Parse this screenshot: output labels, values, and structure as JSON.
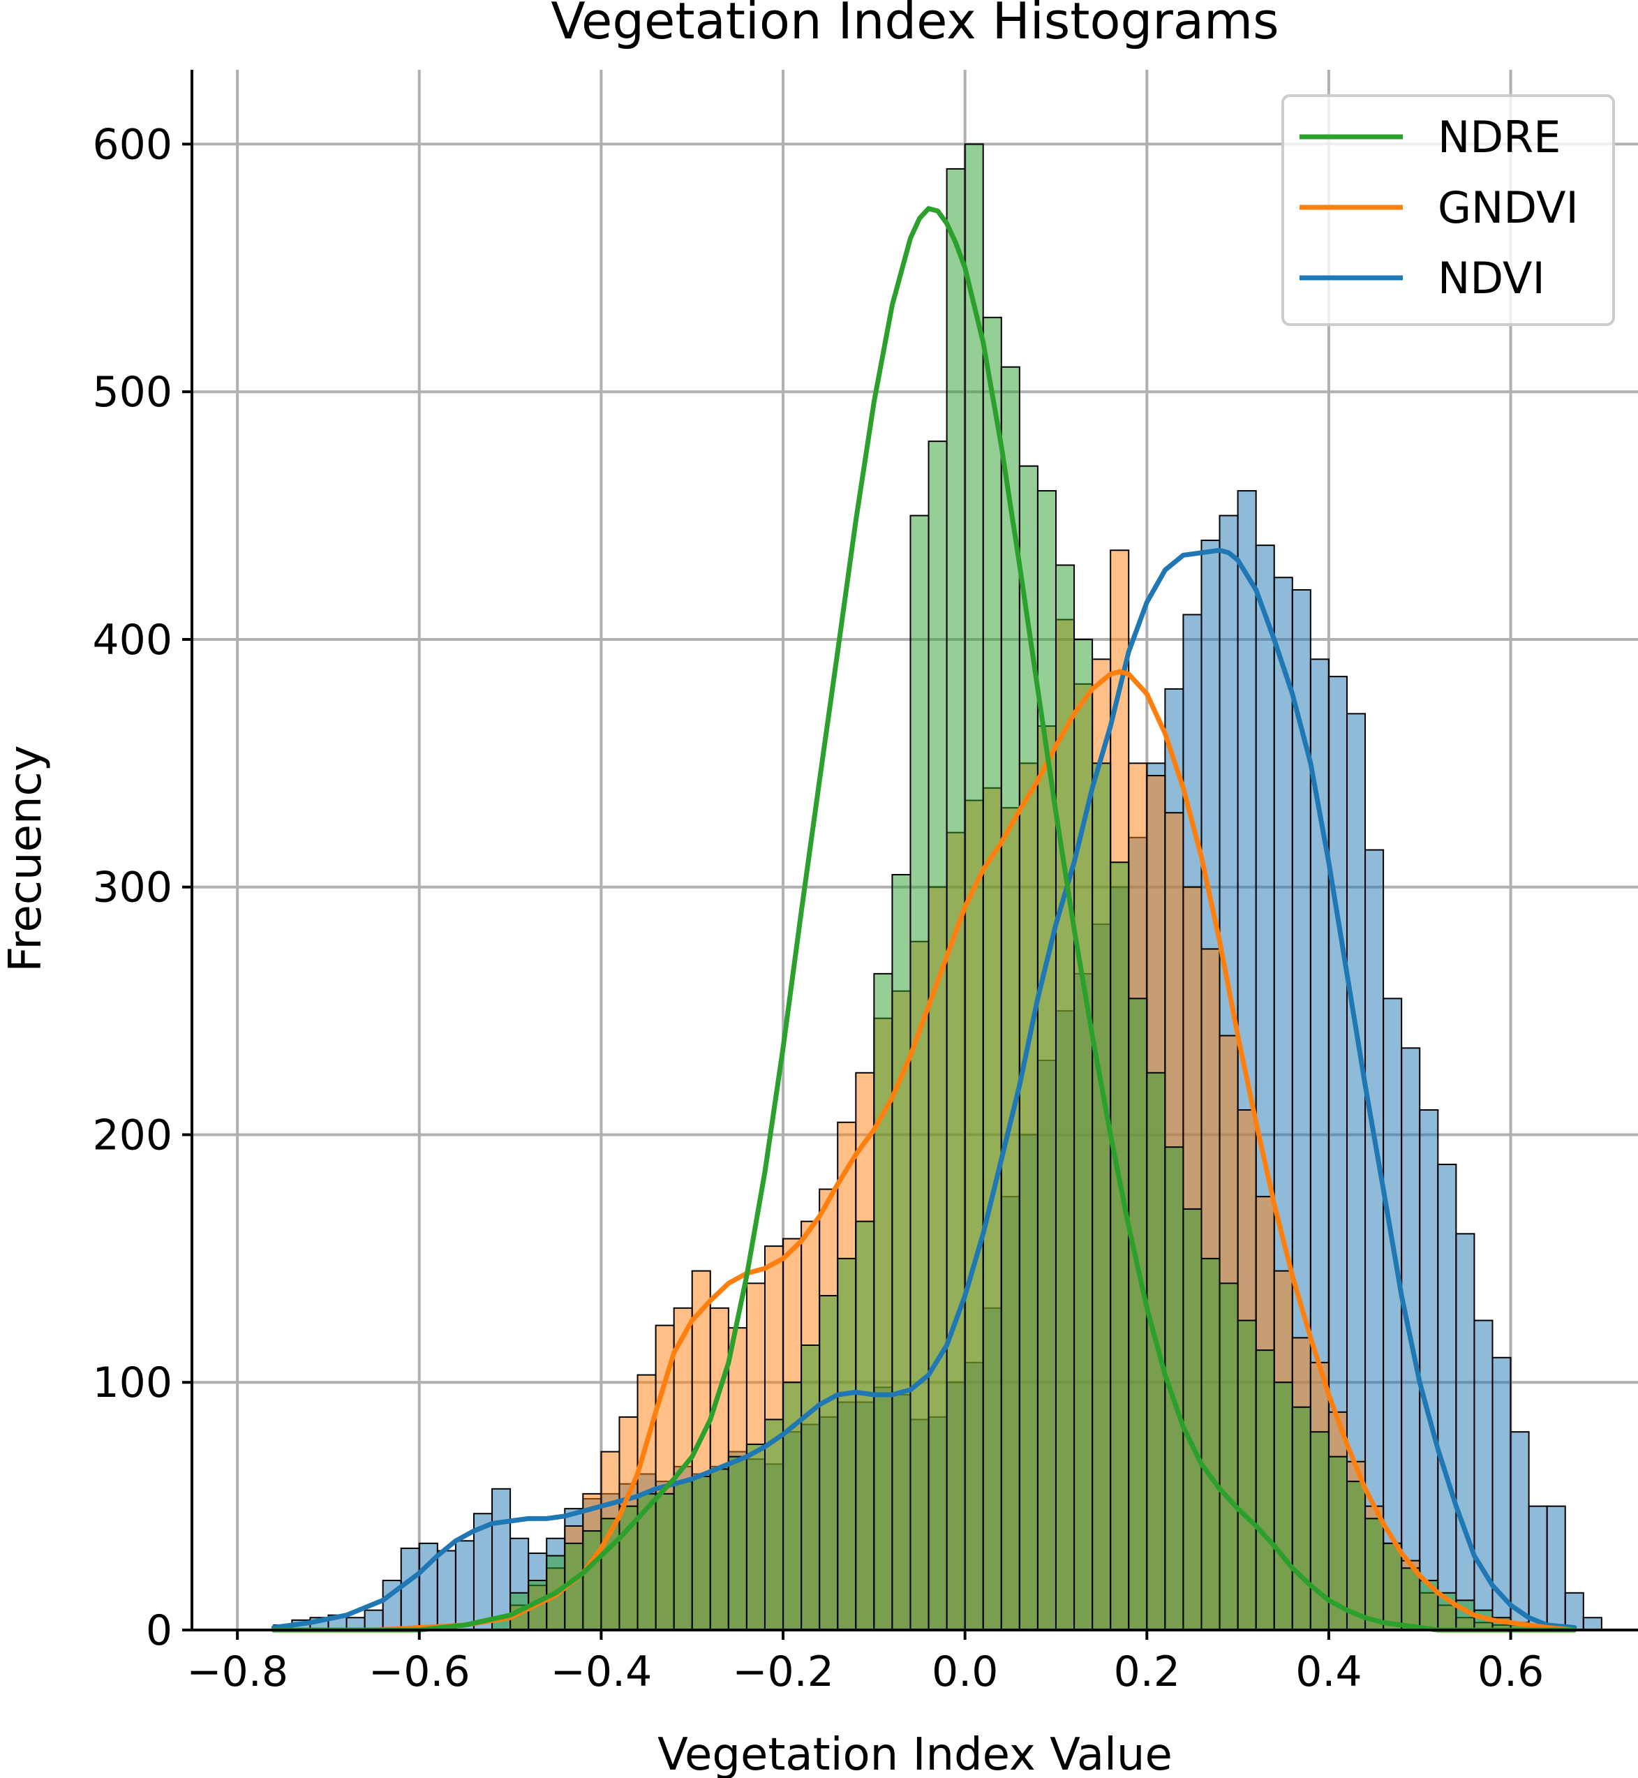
{
  "chart_data": {
    "type": "histogram",
    "title": "Vegetation Index Histograms",
    "xlabel": "Vegetation Index Value",
    "ylabel": "Frecuency",
    "xlim": [
      -0.85,
      0.74
    ],
    "ylim": [
      0,
      630
    ],
    "xticks": [
      -0.8,
      -0.6,
      -0.4,
      -0.2,
      0.0,
      0.2,
      0.4,
      0.6
    ],
    "xtick_labels": [
      "−0.8",
      "−0.6",
      "−0.4",
      "−0.2",
      "0.0",
      "0.2",
      "0.4",
      "0.6"
    ],
    "yticks": [
      0,
      100,
      200,
      300,
      400,
      500,
      600
    ],
    "ytick_labels": [
      "0",
      "100",
      "200",
      "300",
      "400",
      "500",
      "600"
    ],
    "grid": true,
    "legend_position": "top-right",
    "legend": [
      "NDRE",
      "GNDVI",
      "NDVI"
    ],
    "bin_width": 0.02,
    "series": [
      {
        "name": "NDVI",
        "color": "#1f77b4",
        "bin_start": -0.76,
        "counts": [
          2,
          4,
          5,
          6,
          5,
          8,
          20,
          33,
          35,
          32,
          36,
          47,
          57,
          37,
          31,
          37,
          49,
          53,
          55,
          59,
          63,
          60,
          66,
          63,
          66,
          72,
          69,
          67,
          80,
          83,
          86,
          92,
          92,
          98,
          95,
          85,
          86,
          100,
          108,
          130,
          175,
          200,
          230,
          250,
          265,
          285,
          300,
          320,
          350,
          380,
          410,
          440,
          450,
          460,
          438,
          425,
          420,
          392,
          385,
          370,
          315,
          255,
          235,
          210,
          188,
          160,
          125,
          110,
          80,
          50,
          50,
          15,
          5
        ],
        "kde_x": [
          -0.76,
          -0.72,
          -0.68,
          -0.64,
          -0.6,
          -0.58,
          -0.56,
          -0.54,
          -0.52,
          -0.5,
          -0.48,
          -0.46,
          -0.44,
          -0.42,
          -0.4,
          -0.38,
          -0.36,
          -0.34,
          -0.32,
          -0.3,
          -0.28,
          -0.26,
          -0.24,
          -0.22,
          -0.2,
          -0.18,
          -0.16,
          -0.14,
          -0.12,
          -0.1,
          -0.08,
          -0.06,
          -0.04,
          -0.02,
          0.0,
          0.02,
          0.04,
          0.06,
          0.08,
          0.1,
          0.12,
          0.14,
          0.16,
          0.18,
          0.2,
          0.22,
          0.24,
          0.26,
          0.28,
          0.29,
          0.3,
          0.32,
          0.34,
          0.36,
          0.38,
          0.4,
          0.42,
          0.44,
          0.46,
          0.48,
          0.5,
          0.52,
          0.54,
          0.56,
          0.58,
          0.6,
          0.62,
          0.64,
          0.67
        ],
        "kde_y": [
          1,
          3,
          6,
          12,
          23,
          30,
          36,
          40,
          43,
          44,
          45,
          45,
          46,
          48,
          50,
          52,
          54,
          57,
          59,
          61,
          64,
          67,
          70,
          74,
          79,
          85,
          91,
          95,
          96,
          95,
          95,
          97,
          103,
          115,
          135,
          160,
          190,
          220,
          255,
          285,
          310,
          340,
          365,
          395,
          415,
          428,
          434,
          435,
          436,
          435,
          432,
          420,
          400,
          378,
          350,
          310,
          265,
          220,
          178,
          135,
          100,
          73,
          50,
          30,
          18,
          10,
          5,
          2,
          1
        ]
      },
      {
        "name": "GNDVI",
        "color": "#ff7f0e",
        "bin_start": -0.5,
        "counts": [
          10,
          18,
          25,
          42,
          55,
          72,
          86,
          103,
          123,
          130,
          145,
          130,
          122,
          140,
          155,
          158,
          165,
          178,
          205,
          225,
          247,
          258,
          278,
          300,
          322,
          335,
          340,
          332,
          350,
          365,
          408,
          382,
          392,
          436,
          350,
          345,
          330,
          300,
          275,
          240,
          210,
          175,
          145,
          118,
          108,
          88,
          68,
          50,
          35,
          28,
          15,
          10,
          5,
          3,
          2,
          2,
          1
        ],
        "kde_x": [
          -0.76,
          -0.7,
          -0.65,
          -0.6,
          -0.55,
          -0.5,
          -0.45,
          -0.42,
          -0.4,
          -0.38,
          -0.36,
          -0.34,
          -0.32,
          -0.3,
          -0.28,
          -0.26,
          -0.24,
          -0.22,
          -0.2,
          -0.18,
          -0.16,
          -0.14,
          -0.12,
          -0.1,
          -0.08,
          -0.06,
          -0.04,
          -0.02,
          0.0,
          0.02,
          0.04,
          0.06,
          0.08,
          0.1,
          0.12,
          0.14,
          0.16,
          0.17,
          0.18,
          0.2,
          0.22,
          0.24,
          0.26,
          0.28,
          0.3,
          0.32,
          0.34,
          0.36,
          0.38,
          0.4,
          0.42,
          0.44,
          0.46,
          0.48,
          0.5,
          0.52,
          0.54,
          0.56,
          0.58,
          0.6,
          0.62,
          0.64,
          0.67
        ],
        "kde_y": [
          0,
          0,
          0,
          1,
          2,
          5,
          14,
          23,
          33,
          46,
          63,
          88,
          112,
          125,
          133,
          140,
          144,
          146,
          150,
          157,
          167,
          180,
          192,
          202,
          215,
          232,
          252,
          272,
          292,
          307,
          318,
          331,
          343,
          357,
          370,
          380,
          386,
          387,
          386,
          378,
          362,
          340,
          312,
          278,
          240,
          205,
          172,
          143,
          118,
          95,
          75,
          57,
          43,
          31,
          22,
          15,
          10,
          6,
          4,
          3,
          2,
          1,
          0
        ]
      },
      {
        "name": "NDRE",
        "color": "#2ca02c",
        "bin_start": -0.52,
        "counts": [
          5,
          15,
          20,
          30,
          35,
          40,
          45,
          50,
          55,
          55,
          60,
          62,
          65,
          70,
          75,
          85,
          100,
          115,
          135,
          150,
          165,
          265,
          305,
          450,
          480,
          590,
          600,
          530,
          510,
          470,
          460,
          430,
          400,
          350,
          310,
          255,
          225,
          195,
          170,
          150,
          140,
          125,
          113,
          100,
          90,
          80,
          70,
          60,
          45,
          35,
          25,
          20,
          15,
          12,
          8,
          5,
          3,
          1
        ],
        "kde_x": [
          -0.76,
          -0.7,
          -0.65,
          -0.6,
          -0.55,
          -0.5,
          -0.45,
          -0.42,
          -0.4,
          -0.38,
          -0.36,
          -0.34,
          -0.32,
          -0.3,
          -0.28,
          -0.26,
          -0.24,
          -0.22,
          -0.2,
          -0.18,
          -0.16,
          -0.14,
          -0.12,
          -0.1,
          -0.08,
          -0.06,
          -0.05,
          -0.04,
          -0.03,
          -0.02,
          -0.01,
          0.0,
          0.02,
          0.04,
          0.06,
          0.08,
          0.1,
          0.12,
          0.14,
          0.16,
          0.18,
          0.2,
          0.22,
          0.24,
          0.26,
          0.28,
          0.3,
          0.32,
          0.34,
          0.36,
          0.38,
          0.4,
          0.42,
          0.44,
          0.46,
          0.48,
          0.5,
          0.52,
          0.54,
          0.56,
          0.58,
          0.6,
          0.62,
          0.64,
          0.67
        ],
        "kde_y": [
          0,
          0,
          0,
          0,
          2,
          6,
          15,
          23,
          30,
          37,
          45,
          53,
          61,
          70,
          85,
          108,
          143,
          185,
          235,
          290,
          343,
          395,
          448,
          496,
          535,
          562,
          570,
          574,
          573,
          568,
          560,
          550,
          520,
          478,
          430,
          380,
          330,
          283,
          240,
          200,
          163,
          130,
          103,
          82,
          67,
          57,
          49,
          42,
          34,
          25,
          18,
          12,
          8,
          5,
          3,
          2,
          1,
          0,
          0,
          0,
          0,
          0,
          0,
          0,
          0
        ]
      }
    ]
  }
}
